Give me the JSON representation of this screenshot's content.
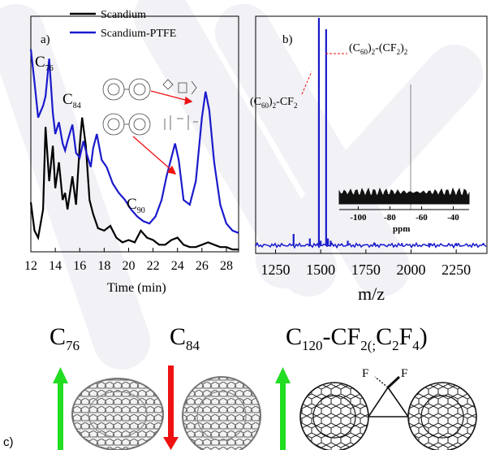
{
  "panel_a": {
    "label": "a)",
    "legend": [
      {
        "name": "Scandium",
        "color": "#000000"
      },
      {
        "name": "Scandium-PTFE",
        "color": "#1a1acc"
      }
    ],
    "annotations": {
      "c76": "C76",
      "c84": "C84",
      "c90": "C90"
    },
    "xlabel": "Time (min)",
    "xticks": [
      "12",
      "14",
      "16",
      "18",
      "20",
      "22",
      "24",
      "26",
      "28"
    ]
  },
  "panel_b": {
    "label": "b)",
    "peak1": "(C60)2-CF2",
    "peak2": "(C60)2-(CF2)2",
    "xlabel": "m/z",
    "xticks": [
      "1250",
      "1500",
      "1750",
      "2000",
      "2250"
    ],
    "inset_ticks": [
      "-100",
      "-80",
      "-60",
      "-40"
    ],
    "inset_xlabel": "ppm"
  },
  "panel_c": {
    "label": "c)",
    "c76": "C76",
    "c84": "C84",
    "c120": "C120-CF2(;C2F4)",
    "f_left": "F",
    "f_right": "F",
    "arrow_up_color": "#22dd22",
    "arrow_down_color": "#ee1111"
  },
  "chart_data": [
    {
      "type": "line",
      "xlabel": "Time (min)",
      "ylabel": "",
      "xlim": [
        12,
        29
      ],
      "series": [
        {
          "name": "Scandium",
          "x": [
            12,
            12.3,
            12.6,
            13.0,
            13.2,
            13.5,
            13.8,
            14.0,
            14.3,
            14.6,
            14.8,
            15.0,
            15.4,
            15.7,
            16.0,
            16.2,
            16.5,
            16.8,
            17.1,
            17.5,
            18.0,
            18.5,
            19.0,
            19.5,
            20.0,
            20.5,
            21.0,
            21.5,
            22.0,
            22.5,
            23.0,
            23.5,
            24.0,
            24.5,
            25.0,
            25.5,
            26.0,
            26.5,
            27.0,
            27.5,
            28.0,
            28.5,
            29.0
          ],
          "y": [
            0.21,
            0.09,
            0.06,
            0.18,
            0.53,
            0.3,
            0.45,
            0.27,
            0.38,
            0.22,
            0.25,
            0.18,
            0.32,
            0.2,
            0.45,
            0.57,
            0.45,
            0.22,
            0.16,
            0.1,
            0.09,
            0.11,
            0.06,
            0.04,
            0.05,
            0.04,
            0.09,
            0.06,
            0.05,
            0.03,
            0.03,
            0.05,
            0.06,
            0.03,
            0.02,
            0.02,
            0.03,
            0.04,
            0.03,
            0.02,
            0.02,
            0.01,
            0.01
          ]
        },
        {
          "name": "Scandium-PTFE",
          "x": [
            12,
            12.3,
            12.6,
            13.0,
            13.2,
            13.5,
            13.8,
            14.0,
            14.3,
            14.6,
            14.8,
            15.0,
            15.4,
            15.7,
            16.0,
            16.3,
            16.6,
            16.9,
            17.1,
            17.4,
            17.8,
            18.2,
            18.7,
            19.2,
            19.7,
            20.2,
            20.7,
            21.2,
            21.7,
            22.2,
            22.7,
            23.1,
            23.5,
            23.8,
            24.1,
            24.5,
            25.0,
            25.5,
            26.0,
            26.3,
            26.6,
            27.0,
            27.5,
            28.0,
            28.5,
            29.0
          ],
          "y": [
            0.86,
            0.72,
            0.57,
            0.62,
            0.66,
            0.82,
            0.59,
            0.5,
            0.55,
            0.46,
            0.43,
            0.47,
            0.54,
            0.42,
            0.4,
            0.47,
            0.41,
            0.36,
            0.44,
            0.5,
            0.39,
            0.36,
            0.29,
            0.25,
            0.22,
            0.18,
            0.15,
            0.13,
            0.12,
            0.15,
            0.22,
            0.32,
            0.4,
            0.46,
            0.39,
            0.22,
            0.2,
            0.3,
            0.57,
            0.68,
            0.6,
            0.38,
            0.2,
            0.12,
            0.09,
            0.08
          ]
        }
      ]
    },
    {
      "type": "line",
      "xlabel": "m/z",
      "ylabel": "",
      "xlim": [
        1140,
        2420
      ],
      "series": [
        {
          "name": "",
          "x": [
            1350,
            1440,
            1490,
            1500,
            1530,
            1540,
            1555,
            1650,
            1800,
            1950,
            2100,
            2250,
            2400
          ],
          "y": [
            0.05,
            0.03,
            1.0,
            0.02,
            0.95,
            0.03,
            0.02,
            0.02,
            0.01,
            0.01,
            0.01,
            0.01,
            0.01
          ]
        }
      ]
    }
  ]
}
